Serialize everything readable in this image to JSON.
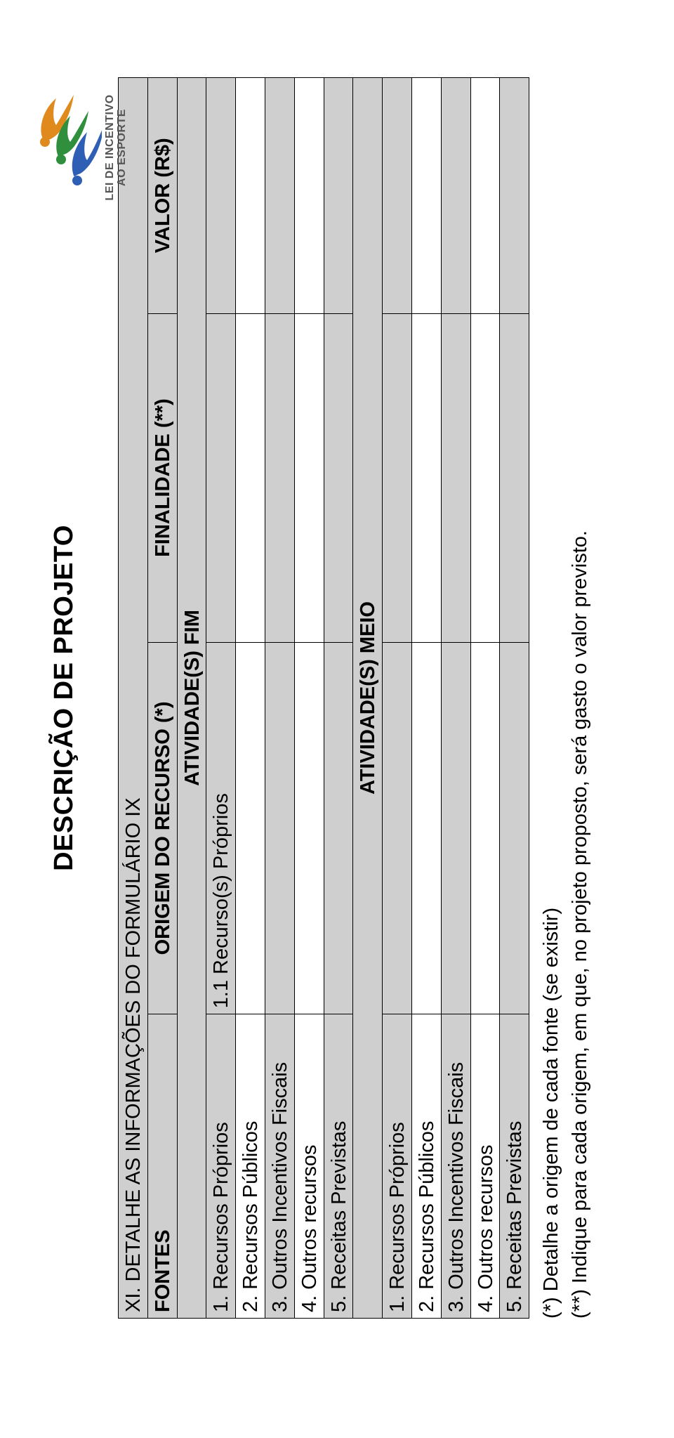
{
  "logo": {
    "line1": "LEI DE INCENTIVO",
    "line2": "AO ESPORTE",
    "colors": {
      "orange": "#e08a1e",
      "green": "#2f8f3d",
      "blue": "#2f5fb5",
      "outline": "#333333"
    }
  },
  "title": "DESCRIÇÃO DE PROJETO",
  "table": {
    "section_title": "XI. DETALHE AS INFORMAÇÕES DO FORMULÁRIO IX",
    "headers": {
      "fontes": "FONTES",
      "origem": "ORIGEM DO RECURSO (*)",
      "finalidade": "FINALIDADE (**)",
      "valor": "VALOR (R$)"
    },
    "group_fim": "ATIVIDADE(S) FIM",
    "group_meio": "ATIVIDADE(S) MEIO",
    "rows_fim": [
      {
        "fonte": "1. Recursos Próprios",
        "origem": "1.1 Recurso(s) Próprios",
        "shaded": true
      },
      {
        "fonte": "2. Recursos Públicos",
        "origem": "",
        "shaded": false
      },
      {
        "fonte": "3. Outros Incentivos Fiscais",
        "origem": "",
        "shaded": true
      },
      {
        "fonte": "4. Outros recursos",
        "origem": "",
        "shaded": false
      },
      {
        "fonte": "5. Receitas Previstas",
        "origem": "",
        "shaded": true
      }
    ],
    "rows_meio": [
      {
        "fonte": "1. Recursos Próprios",
        "origem": "",
        "shaded": true
      },
      {
        "fonte": "2. Recursos Públicos",
        "origem": "",
        "shaded": false
      },
      {
        "fonte": "3. Outros Incentivos Fiscais",
        "origem": "",
        "shaded": true
      },
      {
        "fonte": "4. Outros recursos",
        "origem": "",
        "shaded": false
      },
      {
        "fonte": "5. Receitas Previstas",
        "origem": "",
        "shaded": true
      }
    ]
  },
  "footnotes": {
    "n1": "(*) Detalhe a origem de cada fonte (se existir)",
    "n2": "(**) Indique para cada origem, em que, no projeto proposto, será gasto o valor previsto."
  },
  "style": {
    "page_bg": "#ffffff",
    "cell_border": "#000000",
    "shade_bg": "#cfcfcf",
    "font_family": "Arial",
    "title_fontsize_pt": 28,
    "body_fontsize_pt": 22
  }
}
